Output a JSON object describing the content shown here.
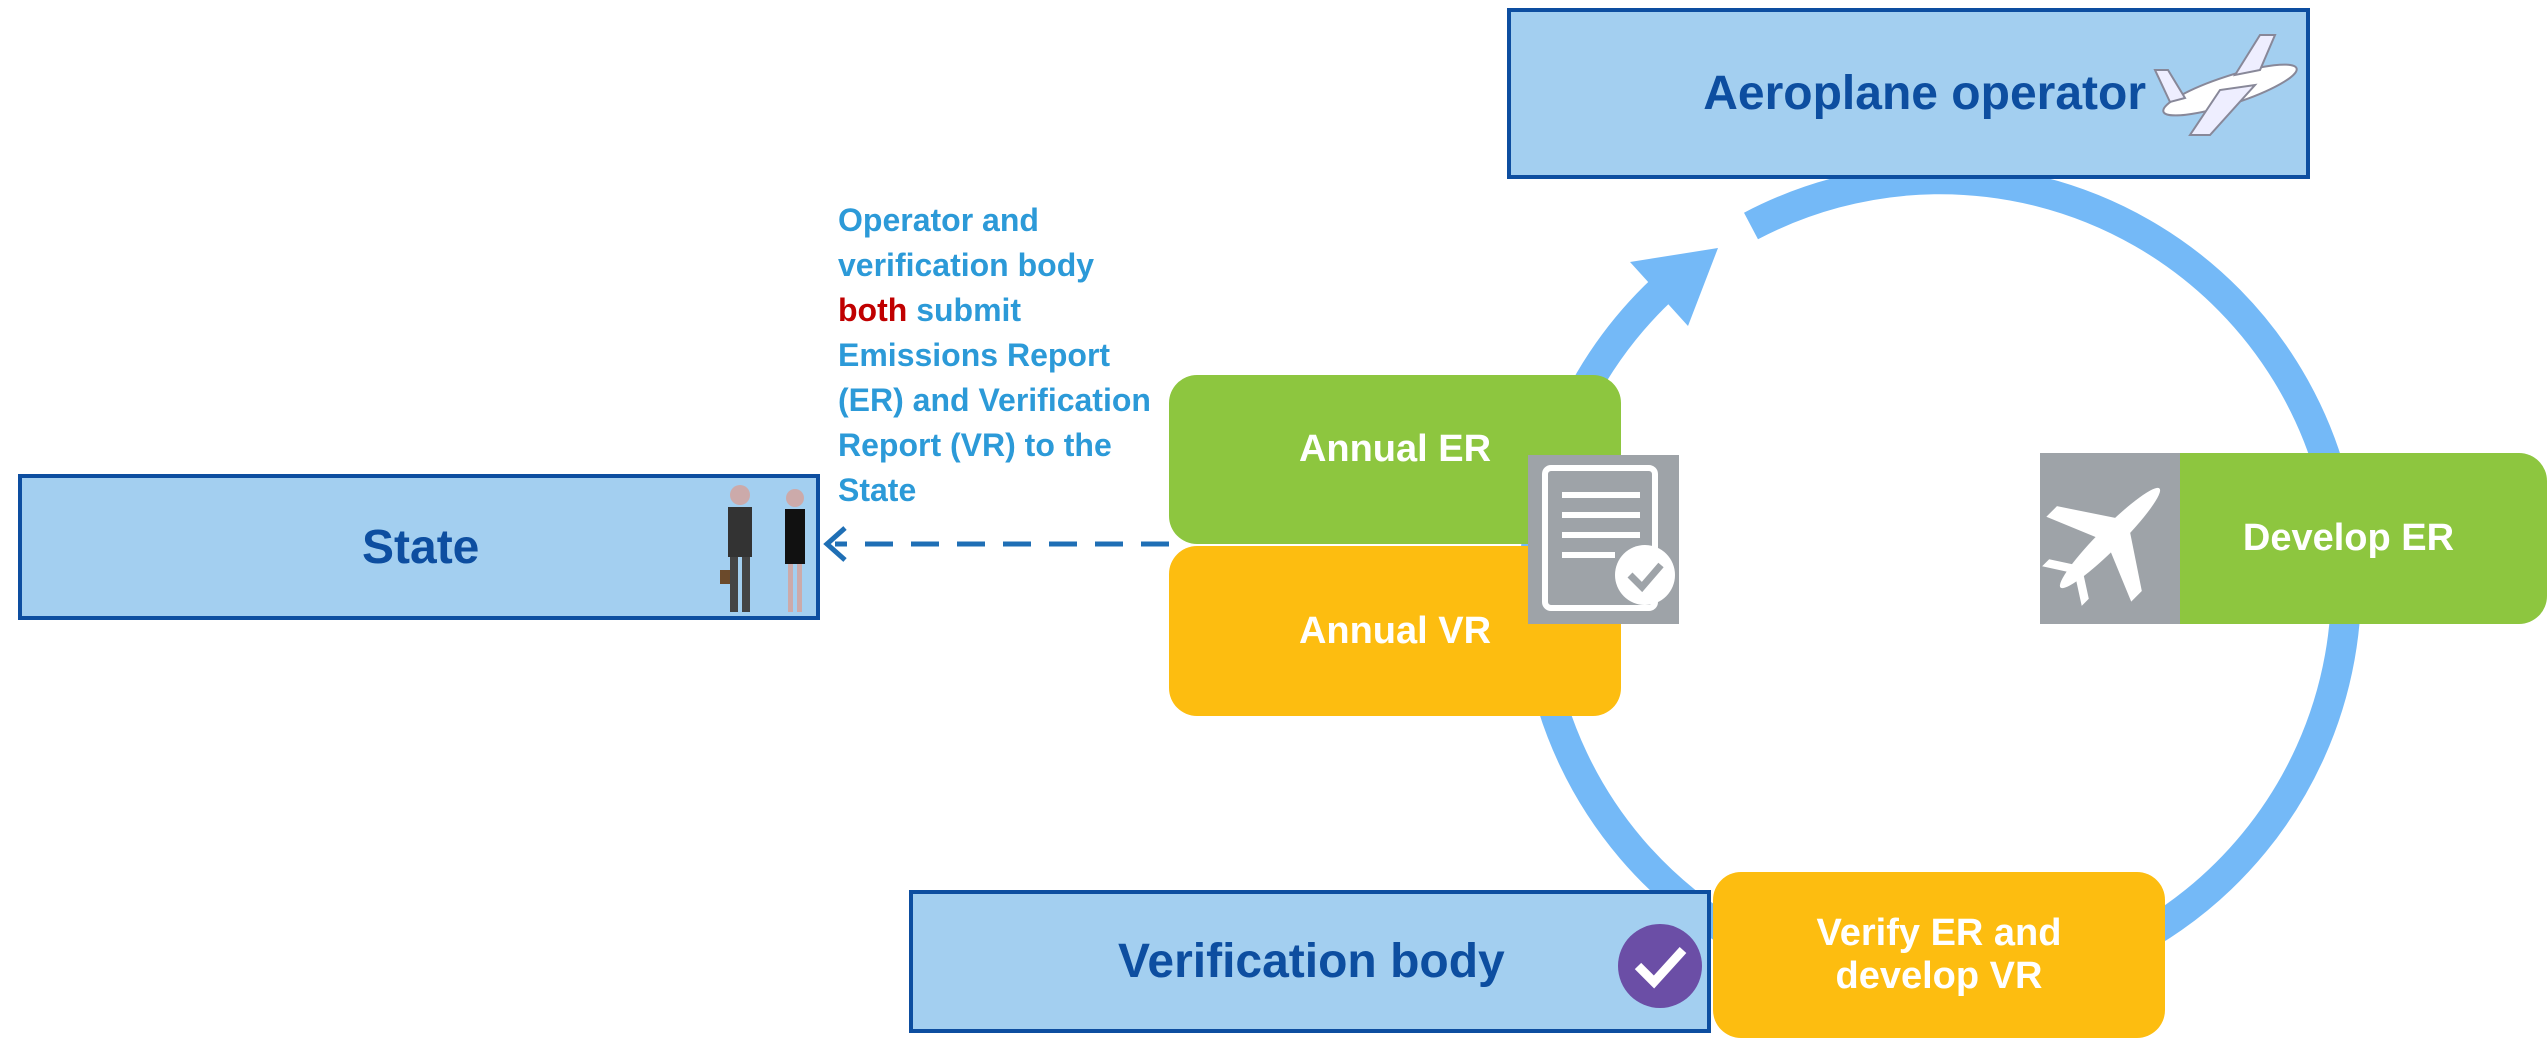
{
  "boxes": {
    "operator": "Aeroplane operator",
    "state": "State",
    "verifier": "Verification body"
  },
  "steps": {
    "annual_er": "Annual ER",
    "annual_vr": "Annual VR",
    "develop_er": "Develop ER",
    "verify": "Verify ER and develop VR"
  },
  "note": {
    "before": "Operator and verification body",
    "emphasis": "both",
    "after": "submit Emissions Report (ER) and Verification Report (VR) to the State"
  }
}
